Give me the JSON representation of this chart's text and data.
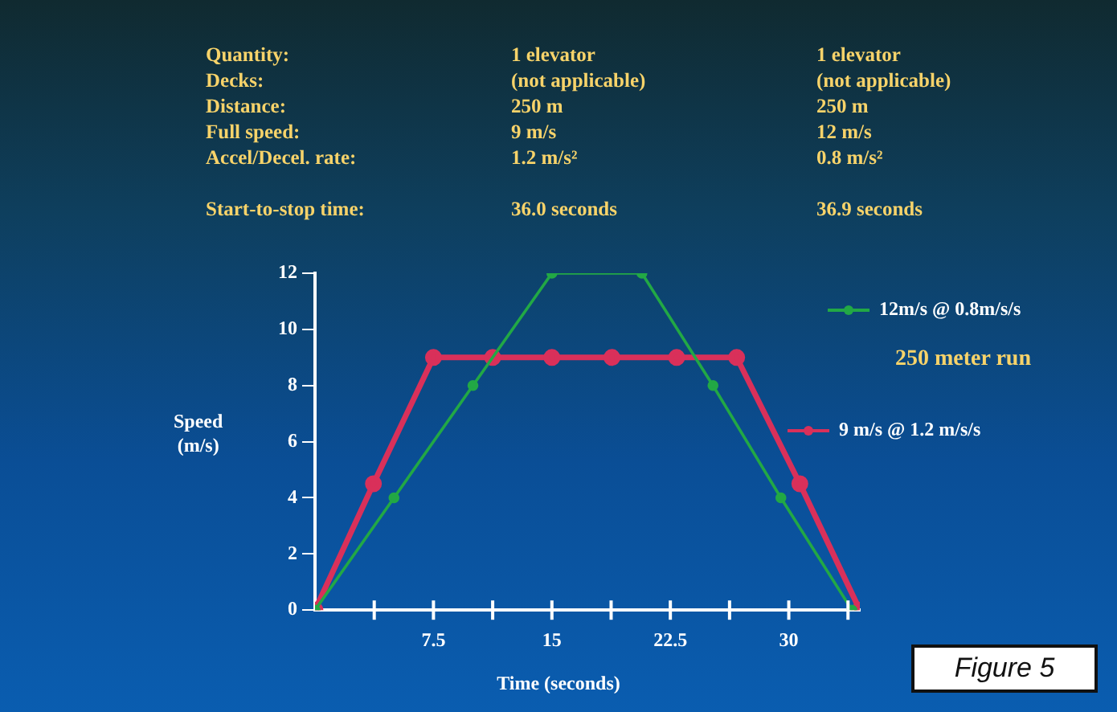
{
  "chart_data": {
    "type": "line",
    "xlabel": "Time (seconds)",
    "ylabel": "Speed (m/s)",
    "series": [
      {
        "name": "12m/s @ 0.8m/s/s",
        "color": "#22a845",
        "x": [
          0,
          5,
          10,
          15,
          20.7,
          25.2,
          29.5,
          34
        ],
        "values": [
          0,
          4,
          8,
          12,
          12,
          8,
          4,
          0
        ]
      },
      {
        "name": "9 m/s @ 1.2 m/s/s",
        "color": "#d9305a",
        "x": [
          0,
          3.7,
          7.5,
          11.25,
          15,
          18.8,
          22.9,
          26.7,
          30.7,
          34.5
        ],
        "values": [
          0,
          4.5,
          9,
          9,
          9,
          9,
          9,
          9,
          4.5,
          0
        ]
      }
    ],
    "xlim": [
      0,
      34.5
    ],
    "xticks": [
      {
        "value": 3.75,
        "label": null
      },
      7.5,
      {
        "value": 11.25,
        "label": null
      },
      15,
      {
        "value": 18.75,
        "label": null
      },
      22.5,
      {
        "value": 26.25,
        "label": null
      },
      30,
      {
        "value": 33.75,
        "label": null
      }
    ],
    "ylim": [
      0,
      12
    ],
    "yticks": [
      0,
      2,
      4,
      6,
      8,
      10,
      12
    ],
    "grid": false,
    "legend": "right",
    "marker": "circle",
    "line_style": "solid",
    "annotations": [
      "Quantity:",
      "1 elevator",
      "1 elevator",
      "Decks:",
      "(not applicable)",
      "(not applicable)",
      "Distance:",
      "250 m",
      "250 m",
      "Full speed:",
      "9 m/s",
      "12 m/s",
      "Accel/Decel. rate:",
      "1.2 m/s²",
      "0.8 m/s²",
      "Start-to-stop time:",
      "36.0 seconds",
      "36.9 seconds",
      "250 meter run",
      "Figure 5"
    ]
  }
}
